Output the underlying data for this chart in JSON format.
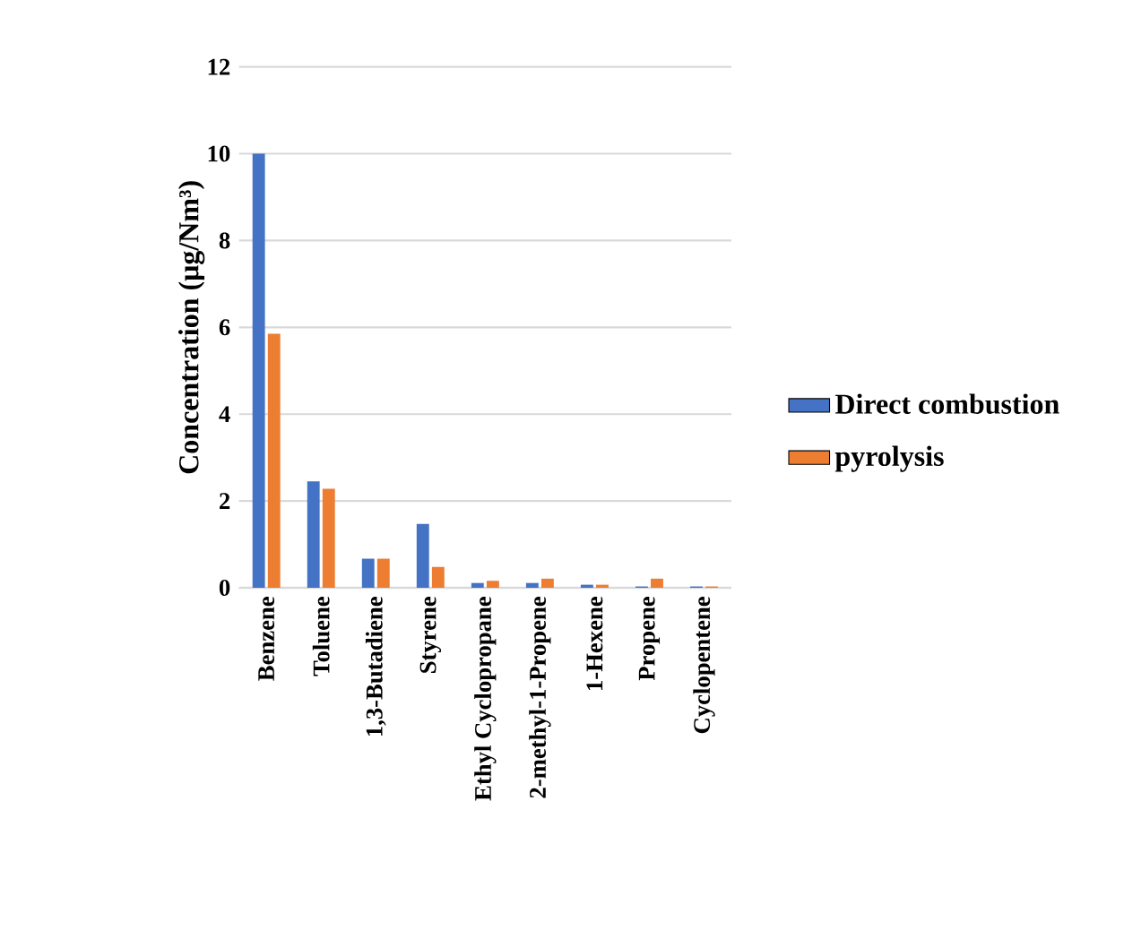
{
  "chart_data": {
    "type": "bar",
    "ylabel": "Concentration  (μg/Nm³)",
    "categories": [
      "Benzene",
      "Toluene",
      "1,3-Butadiene",
      "Styrene",
      "Ethyl Cyclopropane",
      "2-methyl-1-Propene",
      "1-Hexene",
      "Propene",
      "Cyclopentene"
    ],
    "series": [
      {
        "name": "Direct combustion",
        "color": "#4472c4",
        "values": [
          10.0,
          2.45,
          0.67,
          1.47,
          0.11,
          0.11,
          0.07,
          0.03,
          0.03
        ]
      },
      {
        "name": "pyrolysis",
        "color": "#ed7d31",
        "values": [
          5.85,
          2.28,
          0.67,
          0.48,
          0.16,
          0.21,
          0.07,
          0.21,
          0.03
        ]
      }
    ],
    "ylim": [
      0,
      12
    ],
    "yticks": [
      0,
      2,
      4,
      6,
      8,
      10,
      12
    ],
    "grid": "y",
    "legend": "right"
  }
}
